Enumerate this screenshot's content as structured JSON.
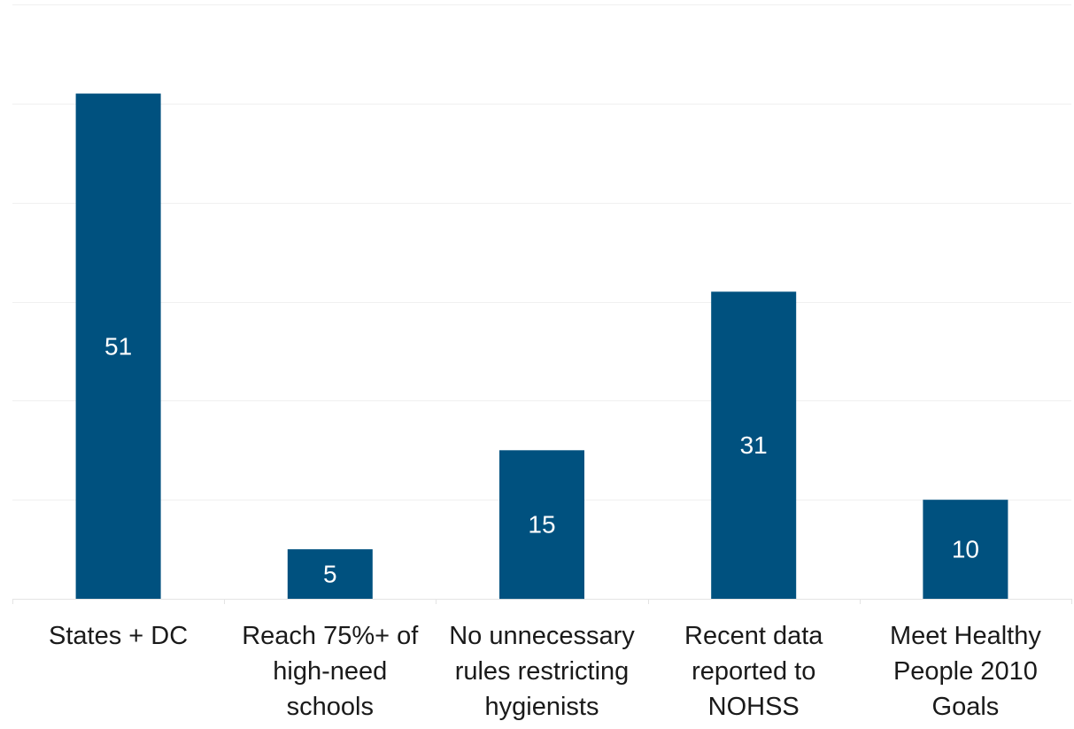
{
  "chart_data": {
    "type": "bar",
    "categories": [
      [
        "States + DC"
      ],
      [
        "Reach 75%+ of",
        "high-need",
        "schools"
      ],
      [
        "No unnecessary",
        "rules restricting",
        "hygienists"
      ],
      [
        "Recent data",
        "reported to",
        "NOHSS"
      ],
      [
        "Meet Healthy",
        "People 2010",
        "Goals"
      ]
    ],
    "values": [
      51,
      5,
      15,
      31,
      10
    ],
    "data_labels": [
      "51",
      "5",
      "15",
      "31",
      "10"
    ],
    "title": "",
    "xlabel": "",
    "ylabel": "",
    "ylim": [
      0,
      60
    ],
    "grid": true,
    "legend": "none",
    "colors": {
      "bar": "#00517f",
      "gridline": "#f0f0f0",
      "baseline": "#e4e4e4",
      "category_text": "#1a1a1a",
      "data_label_text": "#ffffff"
    }
  }
}
